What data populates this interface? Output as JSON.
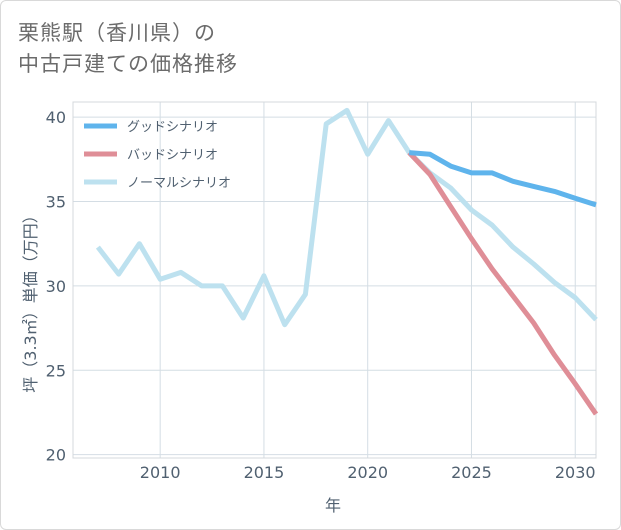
{
  "title": {
    "line1": "栗熊駅（香川県）の",
    "line2": "中古戸建ての価格推移"
  },
  "chart_data": {
    "type": "line",
    "xlabel": "年",
    "ylabel": "坪（3.3㎡）単価（万円）",
    "xlim": [
      2005.8,
      2031
    ],
    "ylim": [
      19.8,
      40.9
    ],
    "xticks": [
      2010,
      2015,
      2020,
      2025,
      2030
    ],
    "yticks": [
      20,
      25,
      30,
      35,
      40
    ],
    "grid": true,
    "legend_position": "top-left",
    "series": [
      {
        "name": "グッドシナリオ",
        "color": "#5fb4ec",
        "x": [
          2022,
          2023,
          2024,
          2025,
          2026,
          2027,
          2028,
          2029,
          2030,
          2031
        ],
        "values": [
          37.9,
          37.8,
          37.1,
          36.7,
          36.7,
          36.2,
          35.9,
          35.6,
          35.2,
          34.8
        ]
      },
      {
        "name": "バッドシナリオ",
        "color": "#df8e97",
        "x": [
          2022,
          2023,
          2024,
          2025,
          2026,
          2027,
          2028,
          2029,
          2030,
          2031
        ],
        "values": [
          37.9,
          36.6,
          34.7,
          32.8,
          31.0,
          29.4,
          27.8,
          25.9,
          24.2,
          22.4
        ]
      },
      {
        "name": "ノーマルシナリオ",
        "color": "#bde1ef",
        "x": [
          2007,
          2008,
          2009,
          2010,
          2011,
          2012,
          2013,
          2014,
          2015,
          2016,
          2017,
          2018,
          2019,
          2020,
          2021,
          2022,
          2023,
          2024,
          2025,
          2026,
          2027,
          2028,
          2029,
          2030,
          2031
        ],
        "values": [
          32.3,
          30.7,
          32.5,
          30.4,
          30.8,
          30.0,
          30.0,
          28.1,
          30.6,
          27.7,
          29.5,
          39.6,
          40.4,
          37.8,
          39.8,
          37.9,
          36.7,
          35.8,
          34.5,
          33.6,
          32.3,
          31.3,
          30.2,
          29.3,
          28.0
        ]
      }
    ]
  }
}
